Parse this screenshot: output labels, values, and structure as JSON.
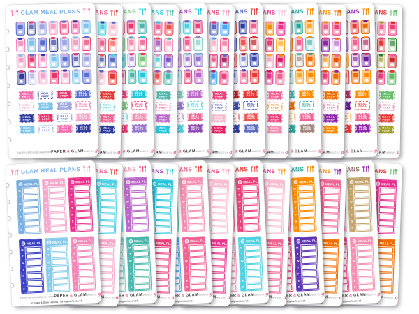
{
  "product": {
    "title": "GLAM MEAL PLANS"
  },
  "labels": {
    "meal_plan": "MEAL PLAN",
    "meal_prep_line1": "MEAL",
    "meal_prep_line2": "PREP",
    "days": [
      "M",
      "T",
      "W",
      "T",
      "F",
      "S",
      "S"
    ]
  },
  "footer": {
    "shop": "SHOP PAPERANDGLAM.COM",
    "brand_paper": "PAPER",
    "brand_amp": "&",
    "brand_glam": "GLAM",
    "made_by": "MADE BY",
    "made_by_brand": "glam",
    "copyright": "© Paper & Glam LLC 2017 All Rights Reserved"
  },
  "colors": {
    "brand_pink": "#f06292",
    "page_bg": "#ffffff",
    "hole_ring": "#c2c2c2",
    "footer_text": "#8f8f8f"
  },
  "rows": {
    "top": {
      "description": "fanned sheets of meal-plan clipboard stickers and MEAL PREP label stickers",
      "sheets": [
        {
          "title_color": "#82b4e4",
          "fork_color": "#f279ae",
          "palette": [
            "#5a6fd0",
            "#f06fae",
            "#f4a3c8",
            "#2e3a9e",
            "#7fc2ea",
            "#e8356d",
            "#9fa8e0"
          ]
        },
        {
          "title_color": "#f06292",
          "fork_color": "#e53935",
          "palette": [
            "#e53935",
            "#4dd0e1",
            "#f06292",
            "#2c3c9e",
            "#f8bbd0",
            "#ef5350",
            "#5c6bc0"
          ]
        },
        {
          "title_color": "#7cc47f",
          "fork_color": "#26c6da",
          "palette": [
            "#26c6da",
            "#e8356d",
            "#f48fb1",
            "#9575cd",
            "#4db6ac",
            "#ec407a",
            "#7cc47f"
          ]
        },
        {
          "title_color": "#26c6da",
          "fork_color": "#4db6ac",
          "palette": [
            "#4db6ac",
            "#f06292",
            "#ba68c8",
            "#26c6da",
            "#ef5350",
            "#f48fb1",
            "#7e57c2"
          ]
        },
        {
          "title_color": "#ab47bc",
          "fork_color": "#26c6da",
          "palette": [
            "#ba68c8",
            "#4dd0e1",
            "#f06292",
            "#8e4bb8",
            "#ec407a",
            "#80cbc4",
            "#9575cd"
          ]
        },
        {
          "title_color": "#ec407a",
          "fork_color": "#f48fb1",
          "palette": [
            "#ec407a",
            "#5c6bc0",
            "#f8bbd0",
            "#e91e63",
            "#42a5f5",
            "#f06292",
            "#ad2c66"
          ]
        },
        {
          "title_color": "#5c6bc0",
          "fork_color": "#e53935",
          "palette": [
            "#e53935",
            "#2c3c9e",
            "#ef5350",
            "#5c6bc0",
            "#f06292",
            "#b71c1c",
            "#3949ab"
          ]
        },
        {
          "title_color": "#e9338c",
          "fork_color": "#f8bbd0",
          "palette": [
            "#f06292",
            "#fb8c00",
            "#ec407a",
            "#f48fb1",
            "#e9338c",
            "#ffa726",
            "#d81b60"
          ]
        },
        {
          "title_color": "#26a69a",
          "fork_color": "#fb8c00",
          "palette": [
            "#fb8c00",
            "#26a69a",
            "#f06292",
            "#a1887f",
            "#ffa726",
            "#4db6ac",
            "#ef6c00"
          ]
        },
        {
          "title_color": "#fb8c00",
          "fork_color": "#ef6c00",
          "palette": [
            "#ef6c00",
            "#f06292",
            "#8e24aa",
            "#fb8c00",
            "#ec407a",
            "#ba68c8",
            "#e65100"
          ]
        },
        {
          "title_color": "#8e24aa",
          "fork_color": "#fb8c00",
          "palette": [
            "#fb8c00",
            "#e53935",
            "#f06292",
            "#8e24aa",
            "#ef6c00",
            "#ad2c66",
            "#6a1b9a"
          ]
        },
        {
          "title_color": "#e53935",
          "fork_color": "#66bb6a",
          "palette": [
            "#66bb6a",
            "#f06292",
            "#e53935",
            "#9e9d24",
            "#ec407a",
            "#2e7d32",
            "#c62828"
          ]
        }
      ]
    },
    "bottom": {
      "description": "fanned sheets of weekly MEAL PLAN tracker stickers with M T W T F S S rows",
      "sheets": [
        {
          "title_color": "#82b4e4",
          "fork_color": "#f279ae",
          "trackers": [
            "#79aede",
            "#f3a9cb",
            "#e8308b",
            "#3a41c4",
            "#87cbec",
            "#f287b8"
          ]
        },
        {
          "title_color": "#f06292",
          "fork_color": "#e53935",
          "trackers": [
            "#f06292",
            "#5c6bc0",
            "#4dd0e1",
            "#ef5350",
            "#7986cb",
            "#f6a8c8"
          ]
        },
        {
          "title_color": "#f48fb1",
          "fork_color": "#ec407a",
          "trackers": [
            "#ec407a",
            "#4dd0e1",
            "#ba68c8",
            "#f06292",
            "#80cbc4",
            "#4db6ac"
          ]
        },
        {
          "title_color": "#ab47bc",
          "fork_color": "#26c6da",
          "trackers": [
            "#ba68c8",
            "#f06292",
            "#26c6da",
            "#9575cd",
            "#f8bbd0",
            "#ec407a"
          ]
        },
        {
          "title_color": "#f06292",
          "fork_color": "#e53935",
          "trackers": [
            "#e53935",
            "#4db6ac",
            "#f48fb1",
            "#d81b60",
            "#42a5f5",
            "#f06292"
          ]
        },
        {
          "title_color": "#ec407a",
          "fork_color": "#f48fb1",
          "trackers": [
            "#5c6bc0",
            "#f06292",
            "#f8bbd0",
            "#3949ab",
            "#ec407a",
            "#e9338c"
          ]
        },
        {
          "title_color": "#e53935",
          "fork_color": "#ef5350",
          "trackers": [
            "#ef5350",
            "#f06292",
            "#ec407a",
            "#b71c1c",
            "#f48fb1",
            "#4dd0e1"
          ]
        },
        {
          "title_color": "#e9338c",
          "fork_color": "#fb8c00",
          "trackers": [
            "#fb8c00",
            "#ec407a",
            "#f8bbd0",
            "#ffa726",
            "#d81b60",
            "#f06292"
          ]
        },
        {
          "title_color": "#26a69a",
          "fork_color": "#fb8c00",
          "trackers": [
            "#26a69a",
            "#f06292",
            "#fb8c00",
            "#4db6ac",
            "#ec407a",
            "#5e35b1"
          ]
        },
        {
          "title_color": "#fb8c00",
          "fork_color": "#8e24aa",
          "trackers": [
            "#ef6c00",
            "#ba68c8",
            "#f06292",
            "#fb8c00",
            "#ec407a",
            "#ef6c00"
          ]
        },
        {
          "title_color": "#8d6e63",
          "fork_color": "#8e24aa",
          "trackers": [
            "#a1887f",
            "#f06292",
            "#c2a36b",
            "#8d6e63",
            "#ec407a",
            "#f48fb1"
          ]
        },
        {
          "title_color": "#e53935",
          "fork_color": "#66bb6a",
          "trackers": [
            "#66bb6a",
            "#ec407a",
            "#e8308b",
            "#2e7d32",
            "#f06292",
            "#ef6c00"
          ]
        }
      ]
    }
  }
}
